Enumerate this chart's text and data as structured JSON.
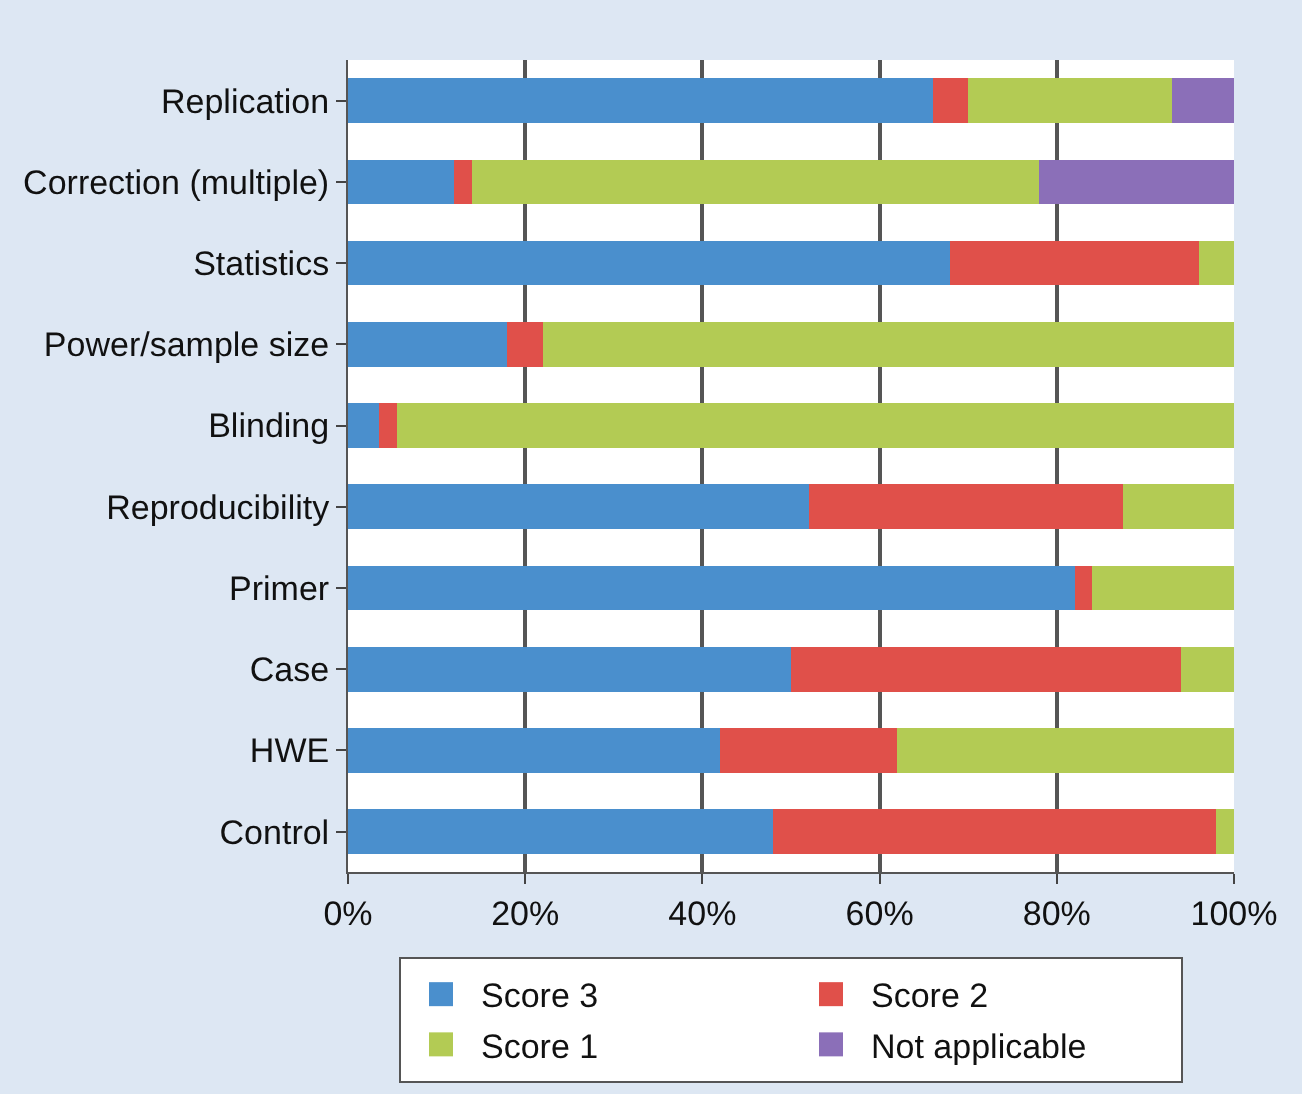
{
  "chart_data": {
    "type": "bar",
    "orientation": "horizontal",
    "stacked": true,
    "categories": [
      "Replication",
      "Correction (multiple)",
      "Statistics",
      "Power/sample size",
      "Blinding",
      "Reproducibility",
      "Primer",
      "Case",
      "HWE",
      "Control"
    ],
    "series": [
      {
        "name": "Score 3",
        "color": "#4a8fcd",
        "values": [
          66,
          12,
          68,
          18,
          3.5,
          52,
          82,
          50,
          42,
          48
        ]
      },
      {
        "name": "Score 2",
        "color": "#e0504a",
        "values": [
          4,
          2,
          28,
          4,
          2,
          35.5,
          2,
          44,
          20,
          50
        ]
      },
      {
        "name": "Score 1",
        "color": "#b3cb54",
        "values": [
          23,
          64,
          4,
          78,
          94.5,
          12.5,
          16,
          6,
          38,
          2
        ]
      },
      {
        "name": "Not applicable",
        "color": "#8b6fb8",
        "values": [
          7,
          22,
          0,
          0,
          0,
          0,
          0,
          0,
          0,
          0
        ]
      }
    ],
    "xlim": [
      0,
      100
    ],
    "xticks": [
      {
        "value": 0,
        "label": "0%"
      },
      {
        "value": 20,
        "label": "20%"
      },
      {
        "value": 40,
        "label": "40%"
      },
      {
        "value": 60,
        "label": "60%"
      },
      {
        "value": 80,
        "label": "80%"
      },
      {
        "value": 100,
        "label": "100%"
      }
    ],
    "grid": "x",
    "legend": "bottom"
  }
}
